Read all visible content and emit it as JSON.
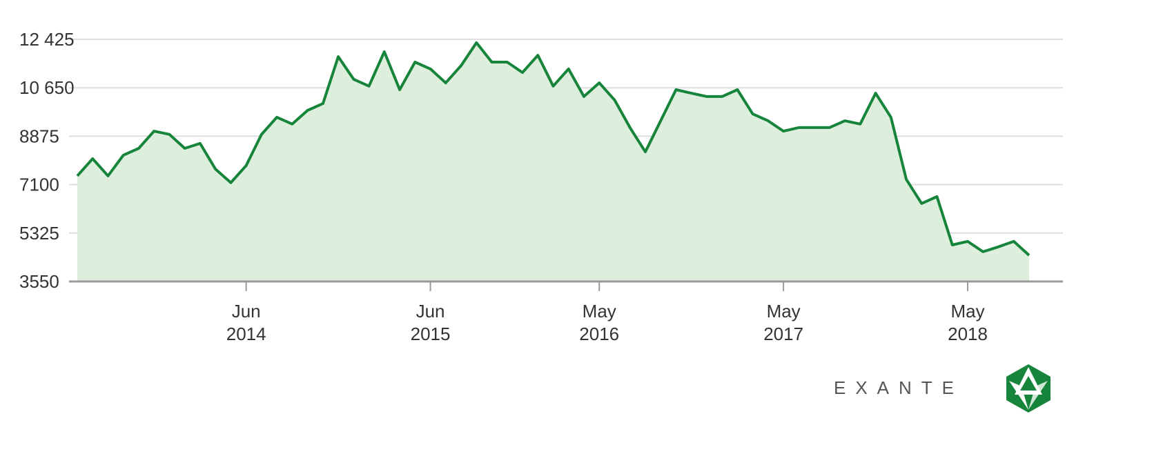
{
  "chart_data": {
    "type": "line",
    "x": [
      "2013-07",
      "2013-08",
      "2013-09",
      "2013-10",
      "2013-11",
      "2013-12",
      "2014-01",
      "2014-02",
      "2014-03",
      "2014-04",
      "2014-05",
      "2014-06",
      "2014-07",
      "2014-08",
      "2014-09",
      "2014-10",
      "2014-11",
      "2014-12",
      "2015-01",
      "2015-02",
      "2015-03",
      "2015-04",
      "2015-05",
      "2015-06",
      "2015-07",
      "2015-08",
      "2015-09",
      "2015-10",
      "2015-11",
      "2015-12",
      "2016-01",
      "2016-02",
      "2016-03",
      "2016-04",
      "2016-05",
      "2016-06",
      "2016-07",
      "2016-08",
      "2016-09",
      "2016-10",
      "2016-11",
      "2016-12",
      "2017-01",
      "2017-02",
      "2017-03",
      "2017-04",
      "2017-05",
      "2017-06",
      "2017-07",
      "2017-08",
      "2017-09",
      "2017-10",
      "2017-11",
      "2017-12",
      "2018-01",
      "2018-02",
      "2018-03",
      "2018-04",
      "2018-05",
      "2018-06",
      "2018-07",
      "2018-08",
      "2018-09"
    ],
    "series": [
      {
        "color": "#16843a",
        "fill": "#deeedd",
        "values": [
          7420,
          8050,
          7420,
          8180,
          8430,
          9060,
          8940,
          8430,
          8610,
          7670,
          7170,
          7800,
          8940,
          9570,
          9320,
          9820,
          10070,
          11790,
          10960,
          10710,
          11970,
          10580,
          11590,
          11340,
          10830,
          11460,
          12300,
          11590,
          11590,
          11210,
          11840,
          10710,
          11340,
          10330,
          10830,
          10200,
          9190,
          8300,
          9440,
          10580,
          10450,
          10330,
          10330,
          10580,
          9690,
          9440,
          9060,
          9190,
          9190,
          9190,
          9440,
          9320,
          10450,
          9570,
          7290,
          6410,
          6660,
          4890,
          5020,
          4640,
          4820,
          5020,
          4510
        ]
      }
    ],
    "xlim": [
      "2013-07",
      "2018-09"
    ],
    "xticks": [
      {
        "value": "2014-06",
        "label": [
          "Jun",
          "2014"
        ]
      },
      {
        "value": "2015-06",
        "label": [
          "Jun",
          "2015"
        ]
      },
      {
        "value": "2016-05",
        "label": [
          "May",
          "2016"
        ]
      },
      {
        "value": "2017-05",
        "label": [
          "May",
          "2017"
        ]
      },
      {
        "value": "2018-05",
        "label": [
          "May",
          "2018"
        ]
      }
    ],
    "ylim": [
      3550,
      12425
    ],
    "yticks": [
      3550,
      5325,
      7100,
      8875,
      {
        "value": 10650,
        "label": "10 650"
      },
      {
        "value": 12425,
        "label": "12 425"
      }
    ],
    "grid": true
  },
  "logo": "EXANTE"
}
